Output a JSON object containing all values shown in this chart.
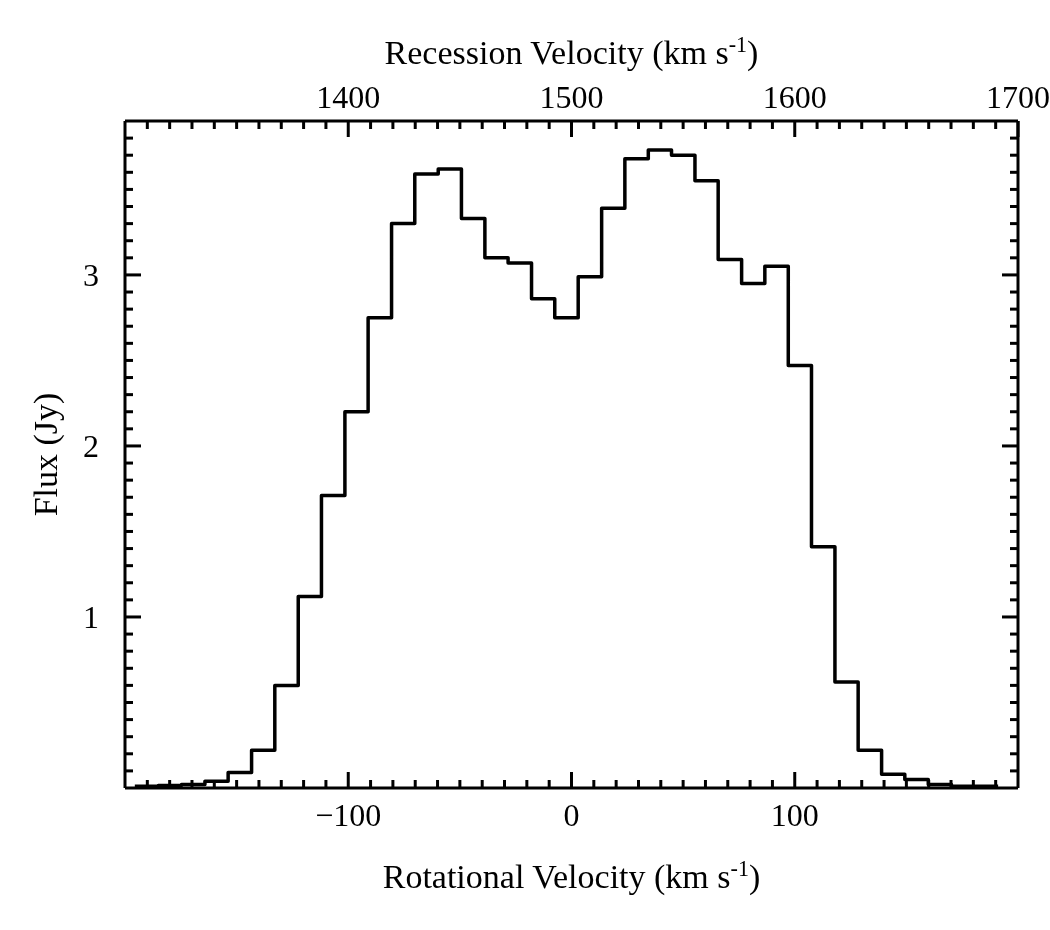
{
  "chart_data": {
    "type": "histogram",
    "xlabel": "Rotational Velocity (km s$^{-1}$)",
    "x2label": "Recession Velocity (km s$^{-1}$)",
    "ylabel": "Flux (Jy)",
    "color": "#000000",
    "bins": [
      -195.6,
      -185.1,
      -174.7,
      -164.2,
      -153.8,
      -143.3,
      -132.9,
      -122.4,
      -112.0,
      -101.5,
      -91.1,
      -80.6,
      -70.2,
      -59.7,
      -49.3,
      -38.8,
      -28.4,
      -17.9,
      -7.5,
      3,
      13.5,
      23.9,
      34.4,
      44.8,
      55.3,
      65.7,
      76.2,
      86.6,
      97.1,
      107.5,
      118,
      128.4,
      138.9,
      149.3,
      159.8,
      170.2,
      180.7,
      191.1
    ],
    "values": [
      0.01,
      0.015,
      0.02,
      0.04,
      0.09,
      0.22,
      0.6,
      1.12,
      1.71,
      2.2,
      2.75,
      3.3,
      3.59,
      3.62,
      3.33,
      3.1,
      3.07,
      2.86,
      2.75,
      2.99,
      3.39,
      3.68,
      3.73,
      3.7,
      3.55,
      3.09,
      2.95,
      3.05,
      2.47,
      1.41,
      0.62,
      0.22,
      0.08,
      0.05,
      0.02,
      0.01,
      0.01
    ],
    "xlim": [
      -200,
      200
    ],
    "xticks": [
      {
        "value": -190,
        "label": null
      },
      {
        "value": -180,
        "label": null
      },
      {
        "value": -170,
        "label": null
      },
      {
        "value": -160,
        "label": null
      },
      {
        "value": -150,
        "label": null
      },
      {
        "value": -140,
        "label": null
      },
      {
        "value": -130,
        "label": null
      },
      {
        "value": -120,
        "label": null
      },
      {
        "value": -110,
        "label": null
      },
      {
        "value": -100,
        "label": "−100"
      },
      {
        "value": -90,
        "label": null
      },
      {
        "value": -80,
        "label": null
      },
      {
        "value": -70,
        "label": null
      },
      {
        "value": -60,
        "label": null
      },
      {
        "value": -50,
        "label": null
      },
      {
        "value": -40,
        "label": null
      },
      {
        "value": -30,
        "label": null
      },
      {
        "value": -20,
        "label": null
      },
      {
        "value": -10,
        "label": null
      },
      0,
      {
        "value": 10,
        "label": null
      },
      {
        "value": 20,
        "label": null
      },
      {
        "value": 30,
        "label": null
      },
      {
        "value": 40,
        "label": null
      },
      {
        "value": 50,
        "label": null
      },
      {
        "value": 60,
        "label": null
      },
      {
        "value": 70,
        "label": null
      },
      {
        "value": 80,
        "label": null
      },
      {
        "value": 90,
        "label": null
      },
      100,
      {
        "value": 110,
        "label": null
      },
      {
        "value": 120,
        "label": null
      },
      {
        "value": 130,
        "label": null
      },
      {
        "value": 140,
        "label": null
      },
      {
        "value": 150,
        "label": null
      },
      {
        "value": 160,
        "label": null
      },
      {
        "value": 170,
        "label": null
      },
      {
        "value": 180,
        "label": null
      },
      {
        "value": 190,
        "label": null
      }
    ],
    "x2lim": [
      1300,
      1700
    ],
    "x2ticks": [
      {
        "value": 1310,
        "label": null
      },
      {
        "value": 1320,
        "label": null
      },
      {
        "value": 1330,
        "label": null
      },
      {
        "value": 1340,
        "label": null
      },
      {
        "value": 1350,
        "label": null
      },
      {
        "value": 1360,
        "label": null
      },
      {
        "value": 1370,
        "label": null
      },
      {
        "value": 1380,
        "label": null
      },
      {
        "value": 1390,
        "label": null
      },
      1400,
      {
        "value": 1410,
        "label": null
      },
      {
        "value": 1420,
        "label": null
      },
      {
        "value": 1430,
        "label": null
      },
      {
        "value": 1440,
        "label": null
      },
      {
        "value": 1450,
        "label": null
      },
      {
        "value": 1460,
        "label": null
      },
      {
        "value": 1470,
        "label": null
      },
      {
        "value": 1480,
        "label": null
      },
      {
        "value": 1490,
        "label": null
      },
      1500,
      {
        "value": 1510,
        "label": null
      },
      {
        "value": 1520,
        "label": null
      },
      {
        "value": 1530,
        "label": null
      },
      {
        "value": 1540,
        "label": null
      },
      {
        "value": 1550,
        "label": null
      },
      {
        "value": 1560,
        "label": null
      },
      {
        "value": 1570,
        "label": null
      },
      {
        "value": 1580,
        "label": null
      },
      {
        "value": 1590,
        "label": null
      },
      1600,
      {
        "value": 1610,
        "label": null
      },
      {
        "value": 1620,
        "label": null
      },
      {
        "value": 1630,
        "label": null
      },
      {
        "value": 1640,
        "label": null
      },
      {
        "value": 1650,
        "label": null
      },
      {
        "value": 1660,
        "label": null
      },
      {
        "value": 1670,
        "label": null
      },
      {
        "value": 1680,
        "label": null
      },
      {
        "value": 1690,
        "label": null
      },
      1700
    ],
    "ylim": [
      0,
      3.9
    ],
    "yticks": [
      {
        "value": 0.1,
        "label": null
      },
      {
        "value": 0.2,
        "label": null
      },
      {
        "value": 0.3,
        "label": null
      },
      {
        "value": 0.4,
        "label": null
      },
      {
        "value": 0.5,
        "label": null
      },
      {
        "value": 0.6,
        "label": null
      },
      {
        "value": 0.7,
        "label": null
      },
      {
        "value": 0.8,
        "label": null
      },
      {
        "value": 0.9,
        "label": null
      },
      1,
      {
        "value": 1.1,
        "label": null
      },
      {
        "value": 1.2,
        "label": null
      },
      {
        "value": 1.3,
        "label": null
      },
      {
        "value": 1.4,
        "label": null
      },
      {
        "value": 1.5,
        "label": null
      },
      {
        "value": 1.6,
        "label": null
      },
      {
        "value": 1.7,
        "label": null
      },
      {
        "value": 1.8,
        "label": null
      },
      {
        "value": 1.9,
        "label": null
      },
      2,
      {
        "value": 2.1,
        "label": null
      },
      {
        "value": 2.2,
        "label": null
      },
      {
        "value": 2.3,
        "label": null
      },
      {
        "value": 2.4,
        "label": null
      },
      {
        "value": 2.5,
        "label": null
      },
      {
        "value": 2.6,
        "label": null
      },
      {
        "value": 2.7,
        "label": null
      },
      {
        "value": 2.8,
        "label": null
      },
      {
        "value": 2.9,
        "label": null
      },
      3,
      {
        "value": 3.1,
        "label": null
      },
      {
        "value": 3.2,
        "label": null
      },
      {
        "value": 3.3,
        "label": null
      },
      {
        "value": 3.4,
        "label": null
      },
      {
        "value": 3.5,
        "label": null
      },
      {
        "value": 3.6,
        "label": null
      },
      {
        "value": 3.7,
        "label": null
      },
      {
        "value": 3.8,
        "label": null
      }
    ],
    "grid": false
  }
}
